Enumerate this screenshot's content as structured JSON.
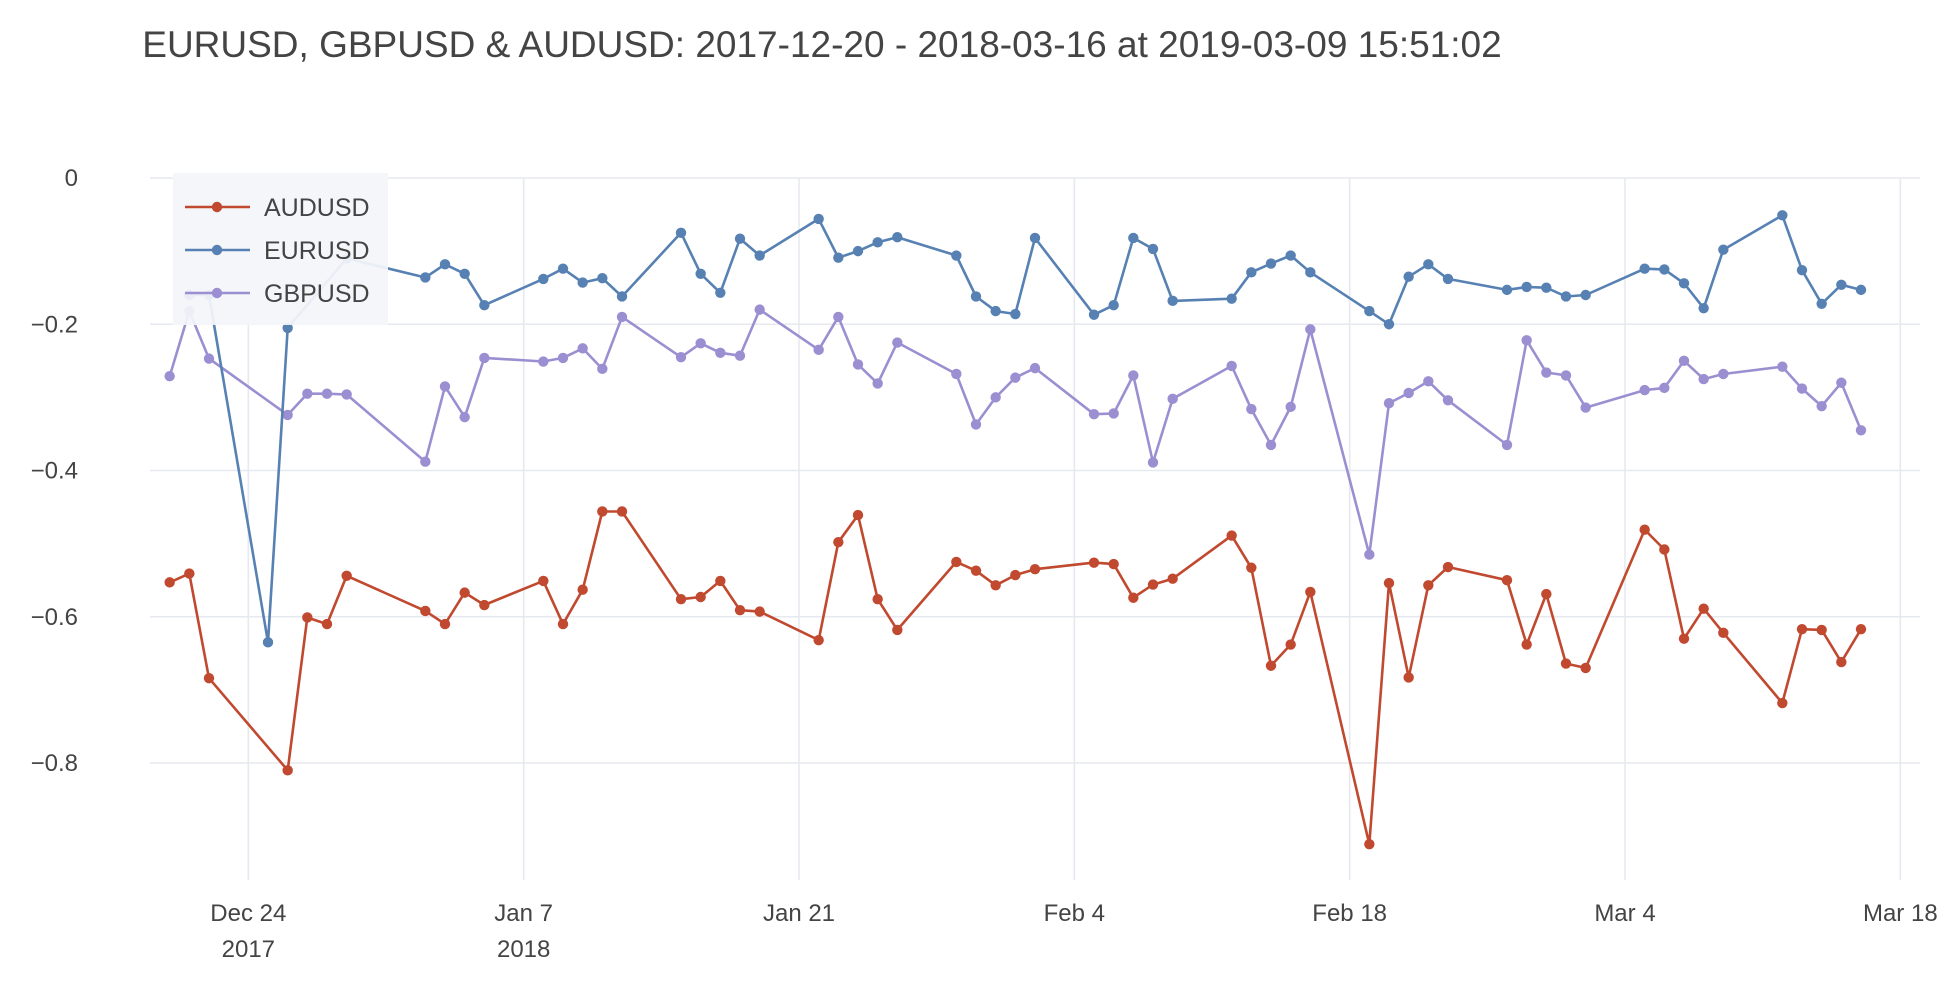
{
  "chart_data": {
    "type": "line",
    "title": "EURUSD, GBPUSD & AUDUSD: 2017-12-20 - 2018-03-16 at 2019-03-09 15:51:02",
    "xlabel": "",
    "ylabel": "",
    "x_range": [
      "2017-12-19",
      "2018-03-19"
    ],
    "ylim": [
      -0.96,
      0.0
    ],
    "y_ticks": [
      0,
      -0.2,
      -0.4,
      -0.6,
      -0.8
    ],
    "y_tick_labels": [
      "0",
      "−0.2",
      "−0.4",
      "−0.6",
      "−0.8"
    ],
    "x_ticks": [
      {
        "date": "2017-12-24",
        "line1": "Dec 24",
        "line2": "2017"
      },
      {
        "date": "2018-01-07",
        "line1": "Jan 7",
        "line2": "2018"
      },
      {
        "date": "2018-01-21",
        "line1": "Jan 21",
        "line2": ""
      },
      {
        "date": "2018-02-04",
        "line1": "Feb 4",
        "line2": ""
      },
      {
        "date": "2018-02-18",
        "line1": "Feb 18",
        "line2": ""
      },
      {
        "date": "2018-03-04",
        "line1": "Mar 4",
        "line2": ""
      },
      {
        "date": "2018-03-18",
        "line1": "Mar 18",
        "line2": ""
      }
    ],
    "grid": true,
    "legend_position": "top-left",
    "series": [
      {
        "name": "AUDUSD",
        "color": "#c0492f",
        "points": [
          [
            "2017-12-20",
            -0.553
          ],
          [
            "2017-12-21",
            -0.541
          ],
          [
            "2017-12-22",
            -0.684
          ],
          [
            "2017-12-26",
            -0.81
          ],
          [
            "2017-12-27",
            -0.601
          ],
          [
            "2017-12-28",
            -0.61
          ],
          [
            "2017-12-29",
            -0.544
          ],
          [
            "2018-01-02",
            -0.592
          ],
          [
            "2018-01-03",
            -0.61
          ],
          [
            "2018-01-04",
            -0.567
          ],
          [
            "2018-01-05",
            -0.584
          ],
          [
            "2018-01-08",
            -0.551
          ],
          [
            "2018-01-09",
            -0.61
          ],
          [
            "2018-01-10",
            -0.563
          ],
          [
            "2018-01-11",
            -0.456
          ],
          [
            "2018-01-12",
            -0.456
          ],
          [
            "2018-01-15",
            -0.576
          ],
          [
            "2018-01-16",
            -0.573
          ],
          [
            "2018-01-17",
            -0.551
          ],
          [
            "2018-01-18",
            -0.591
          ],
          [
            "2018-01-19",
            -0.593
          ],
          [
            "2018-01-22",
            -0.632
          ],
          [
            "2018-01-23",
            -0.498
          ],
          [
            "2018-01-24",
            -0.461
          ],
          [
            "2018-01-25",
            -0.576
          ],
          [
            "2018-01-26",
            -0.618
          ],
          [
            "2018-01-29",
            -0.525
          ],
          [
            "2018-01-30",
            -0.537
          ],
          [
            "2018-01-31",
            -0.557
          ],
          [
            "2018-02-01",
            -0.543
          ],
          [
            "2018-02-02",
            -0.535
          ],
          [
            "2018-02-05",
            -0.526
          ],
          [
            "2018-02-06",
            -0.528
          ],
          [
            "2018-02-07",
            -0.574
          ],
          [
            "2018-02-08",
            -0.556
          ],
          [
            "2018-02-09",
            -0.548
          ],
          [
            "2018-02-12",
            -0.489
          ],
          [
            "2018-02-13",
            -0.533
          ],
          [
            "2018-02-14",
            -0.667
          ],
          [
            "2018-02-15",
            -0.638
          ],
          [
            "2018-02-16",
            -0.566
          ],
          [
            "2018-02-19",
            -0.911
          ],
          [
            "2018-02-20",
            -0.554
          ],
          [
            "2018-02-21",
            -0.683
          ],
          [
            "2018-02-22",
            -0.557
          ],
          [
            "2018-02-23",
            -0.532
          ],
          [
            "2018-02-26",
            -0.55
          ],
          [
            "2018-02-27",
            -0.638
          ],
          [
            "2018-02-28",
            -0.569
          ],
          [
            "2018-03-01",
            -0.664
          ],
          [
            "2018-03-02",
            -0.67
          ],
          [
            "2018-03-05",
            -0.481
          ],
          [
            "2018-03-06",
            -0.508
          ],
          [
            "2018-03-07",
            -0.63
          ],
          [
            "2018-03-08",
            -0.589
          ],
          [
            "2018-03-09",
            -0.622
          ],
          [
            "2018-03-12",
            -0.718
          ],
          [
            "2018-03-13",
            -0.617
          ],
          [
            "2018-03-14",
            -0.618
          ],
          [
            "2018-03-15",
            -0.662
          ],
          [
            "2018-03-16",
            -0.617
          ]
        ]
      },
      {
        "name": "EURUSD",
        "color": "#5681b2",
        "points": [
          [
            "2017-12-21",
            -0.16
          ],
          [
            "2017-12-22",
            -0.16
          ],
          [
            "2017-12-25",
            -0.635
          ],
          [
            "2017-12-26",
            -0.205
          ],
          [
            "2017-12-29",
            -0.11
          ],
          [
            "2018-01-02",
            -0.136
          ],
          [
            "2018-01-03",
            -0.118
          ],
          [
            "2018-01-04",
            -0.131
          ],
          [
            "2018-01-05",
            -0.174
          ],
          [
            "2018-01-08",
            -0.138
          ],
          [
            "2018-01-09",
            -0.124
          ],
          [
            "2018-01-10",
            -0.143
          ],
          [
            "2018-01-11",
            -0.137
          ],
          [
            "2018-01-12",
            -0.162
          ],
          [
            "2018-01-15",
            -0.075
          ],
          [
            "2018-01-16",
            -0.131
          ],
          [
            "2018-01-17",
            -0.157
          ],
          [
            "2018-01-18",
            -0.083
          ],
          [
            "2018-01-19",
            -0.106
          ],
          [
            "2018-01-22",
            -0.056
          ],
          [
            "2018-01-23",
            -0.109
          ],
          [
            "2018-01-24",
            -0.1
          ],
          [
            "2018-01-25",
            -0.088
          ],
          [
            "2018-01-26",
            -0.081
          ],
          [
            "2018-01-29",
            -0.106
          ],
          [
            "2018-01-30",
            -0.162
          ],
          [
            "2018-01-31",
            -0.182
          ],
          [
            "2018-02-01",
            -0.186
          ],
          [
            "2018-02-02",
            -0.082
          ],
          [
            "2018-02-05",
            -0.187
          ],
          [
            "2018-02-06",
            -0.174
          ],
          [
            "2018-02-07",
            -0.082
          ],
          [
            "2018-02-08",
            -0.097
          ],
          [
            "2018-02-09",
            -0.168
          ],
          [
            "2018-02-12",
            -0.165
          ],
          [
            "2018-02-13",
            -0.129
          ],
          [
            "2018-02-14",
            -0.117
          ],
          [
            "2018-02-15",
            -0.106
          ],
          [
            "2018-02-16",
            -0.129
          ],
          [
            "2018-02-19",
            -0.182
          ],
          [
            "2018-02-20",
            -0.2
          ],
          [
            "2018-02-21",
            -0.135
          ],
          [
            "2018-02-22",
            -0.118
          ],
          [
            "2018-02-23",
            -0.138
          ],
          [
            "2018-02-26",
            -0.153
          ],
          [
            "2018-02-27",
            -0.149
          ],
          [
            "2018-02-28",
            -0.15
          ],
          [
            "2018-03-01",
            -0.162
          ],
          [
            "2018-03-02",
            -0.16
          ],
          [
            "2018-03-05",
            -0.124
          ],
          [
            "2018-03-06",
            -0.125
          ],
          [
            "2018-03-07",
            -0.144
          ],
          [
            "2018-03-08",
            -0.178
          ],
          [
            "2018-03-09",
            -0.098
          ],
          [
            "2018-03-12",
            -0.051
          ],
          [
            "2018-03-13",
            -0.126
          ],
          [
            "2018-03-14",
            -0.172
          ],
          [
            "2018-03-15",
            -0.146
          ],
          [
            "2018-03-16",
            -0.153
          ]
        ]
      },
      {
        "name": "GBPUSD",
        "color": "#9b8fd2",
        "points": [
          [
            "2017-12-20",
            -0.271
          ],
          [
            "2017-12-21",
            -0.182
          ],
          [
            "2017-12-22",
            -0.247
          ],
          [
            "2017-12-26",
            -0.324
          ],
          [
            "2017-12-27",
            -0.295
          ],
          [
            "2017-12-28",
            -0.295
          ],
          [
            "2017-12-29",
            -0.296
          ],
          [
            "2018-01-02",
            -0.388
          ],
          [
            "2018-01-03",
            -0.285
          ],
          [
            "2018-01-04",
            -0.327
          ],
          [
            "2018-01-05",
            -0.246
          ],
          [
            "2018-01-08",
            -0.251
          ],
          [
            "2018-01-09",
            -0.246
          ],
          [
            "2018-01-10",
            -0.233
          ],
          [
            "2018-01-11",
            -0.261
          ],
          [
            "2018-01-12",
            -0.19
          ],
          [
            "2018-01-15",
            -0.245
          ],
          [
            "2018-01-16",
            -0.226
          ],
          [
            "2018-01-17",
            -0.239
          ],
          [
            "2018-01-18",
            -0.243
          ],
          [
            "2018-01-19",
            -0.18
          ],
          [
            "2018-01-22",
            -0.235
          ],
          [
            "2018-01-23",
            -0.19
          ],
          [
            "2018-01-24",
            -0.255
          ],
          [
            "2018-01-25",
            -0.281
          ],
          [
            "2018-01-26",
            -0.225
          ],
          [
            "2018-01-29",
            -0.268
          ],
          [
            "2018-01-30",
            -0.337
          ],
          [
            "2018-01-31",
            -0.3
          ],
          [
            "2018-02-01",
            -0.273
          ],
          [
            "2018-02-02",
            -0.26
          ],
          [
            "2018-02-05",
            -0.323
          ],
          [
            "2018-02-06",
            -0.322
          ],
          [
            "2018-02-07",
            -0.27
          ],
          [
            "2018-02-08",
            -0.389
          ],
          [
            "2018-02-09",
            -0.302
          ],
          [
            "2018-02-12",
            -0.257
          ],
          [
            "2018-02-13",
            -0.316
          ],
          [
            "2018-02-14",
            -0.365
          ],
          [
            "2018-02-15",
            -0.313
          ],
          [
            "2018-02-16",
            -0.207
          ],
          [
            "2018-02-19",
            -0.515
          ],
          [
            "2018-02-20",
            -0.308
          ],
          [
            "2018-02-21",
            -0.294
          ],
          [
            "2018-02-22",
            -0.278
          ],
          [
            "2018-02-23",
            -0.304
          ],
          [
            "2018-02-26",
            -0.365
          ],
          [
            "2018-02-27",
            -0.222
          ],
          [
            "2018-02-28",
            -0.266
          ],
          [
            "2018-03-01",
            -0.27
          ],
          [
            "2018-03-02",
            -0.314
          ],
          [
            "2018-03-05",
            -0.29
          ],
          [
            "2018-03-06",
            -0.287
          ],
          [
            "2018-03-07",
            -0.25
          ],
          [
            "2018-03-08",
            -0.275
          ],
          [
            "2018-03-09",
            -0.268
          ],
          [
            "2018-03-12",
            -0.258
          ],
          [
            "2018-03-13",
            -0.288
          ],
          [
            "2018-03-14",
            -0.312
          ],
          [
            "2018-03-15",
            -0.28
          ],
          [
            "2018-03-16",
            -0.345
          ]
        ]
      }
    ]
  }
}
